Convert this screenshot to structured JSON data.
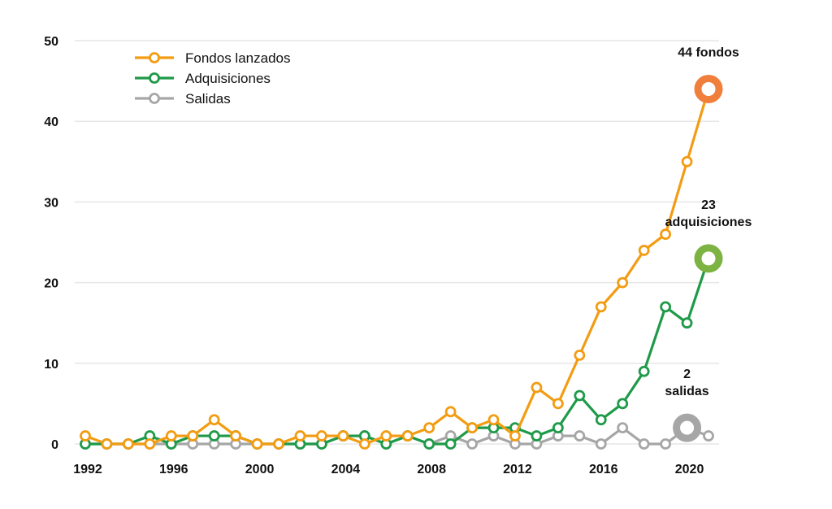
{
  "chart_data": {
    "type": "line",
    "x": [
      1992,
      1993,
      1994,
      1995,
      1996,
      1997,
      1998,
      1999,
      2000,
      2001,
      2002,
      2003,
      2004,
      2005,
      2006,
      2007,
      2008,
      2009,
      2010,
      2011,
      2012,
      2013,
      2014,
      2015,
      2016,
      2017,
      2018,
      2019,
      2020,
      2021
    ],
    "series": [
      {
        "name": "Fondos lanzados",
        "color": "#F39C12",
        "values": [
          1,
          0,
          0,
          0,
          1,
          1,
          3,
          1,
          0,
          0,
          1,
          1,
          1,
          0,
          1,
          1,
          2,
          4,
          2,
          3,
          1,
          7,
          5,
          11,
          17,
          20,
          24,
          26,
          35,
          44
        ]
      },
      {
        "name": "Adquisiciones",
        "color": "#1E9A48",
        "values": [
          0,
          0,
          0,
          1,
          0,
          1,
          1,
          1,
          0,
          0,
          0,
          0,
          1,
          1,
          0,
          1,
          0,
          0,
          2,
          2,
          2,
          1,
          2,
          6,
          3,
          5,
          9,
          17,
          15,
          23
        ]
      },
      {
        "name": "Salidas",
        "color": "#A6A6A6",
        "values": [
          0,
          0,
          0,
          0,
          0,
          0,
          0,
          0,
          0,
          0,
          0,
          0,
          1,
          1,
          0,
          1,
          0,
          1,
          0,
          1,
          0,
          0,
          1,
          1,
          0,
          2,
          0,
          0,
          2,
          1
        ]
      }
    ],
    "xticks": [
      "1992",
      "1996",
      "2000",
      "2004",
      "2008",
      "2012",
      "2016",
      "2020"
    ],
    "yticks": [
      "0",
      "10",
      "20",
      "30",
      "40",
      "50"
    ],
    "ylim": [
      0,
      50
    ],
    "xlim": [
      1992,
      2021
    ],
    "grid": "horizontal",
    "legend_position": "top-left",
    "annotations": [
      {
        "lines": [
          "44 fondos"
        ],
        "x": 2021,
        "y": 44,
        "highlight_color": "#F07F3C"
      },
      {
        "lines": [
          "23",
          "adquisiciones"
        ],
        "x": 2021,
        "y": 23,
        "highlight_color": "#7CB342"
      },
      {
        "lines": [
          "2",
          "salidas"
        ],
        "x": 2020,
        "y": 2,
        "highlight_color": "#A6A6A6"
      }
    ]
  }
}
